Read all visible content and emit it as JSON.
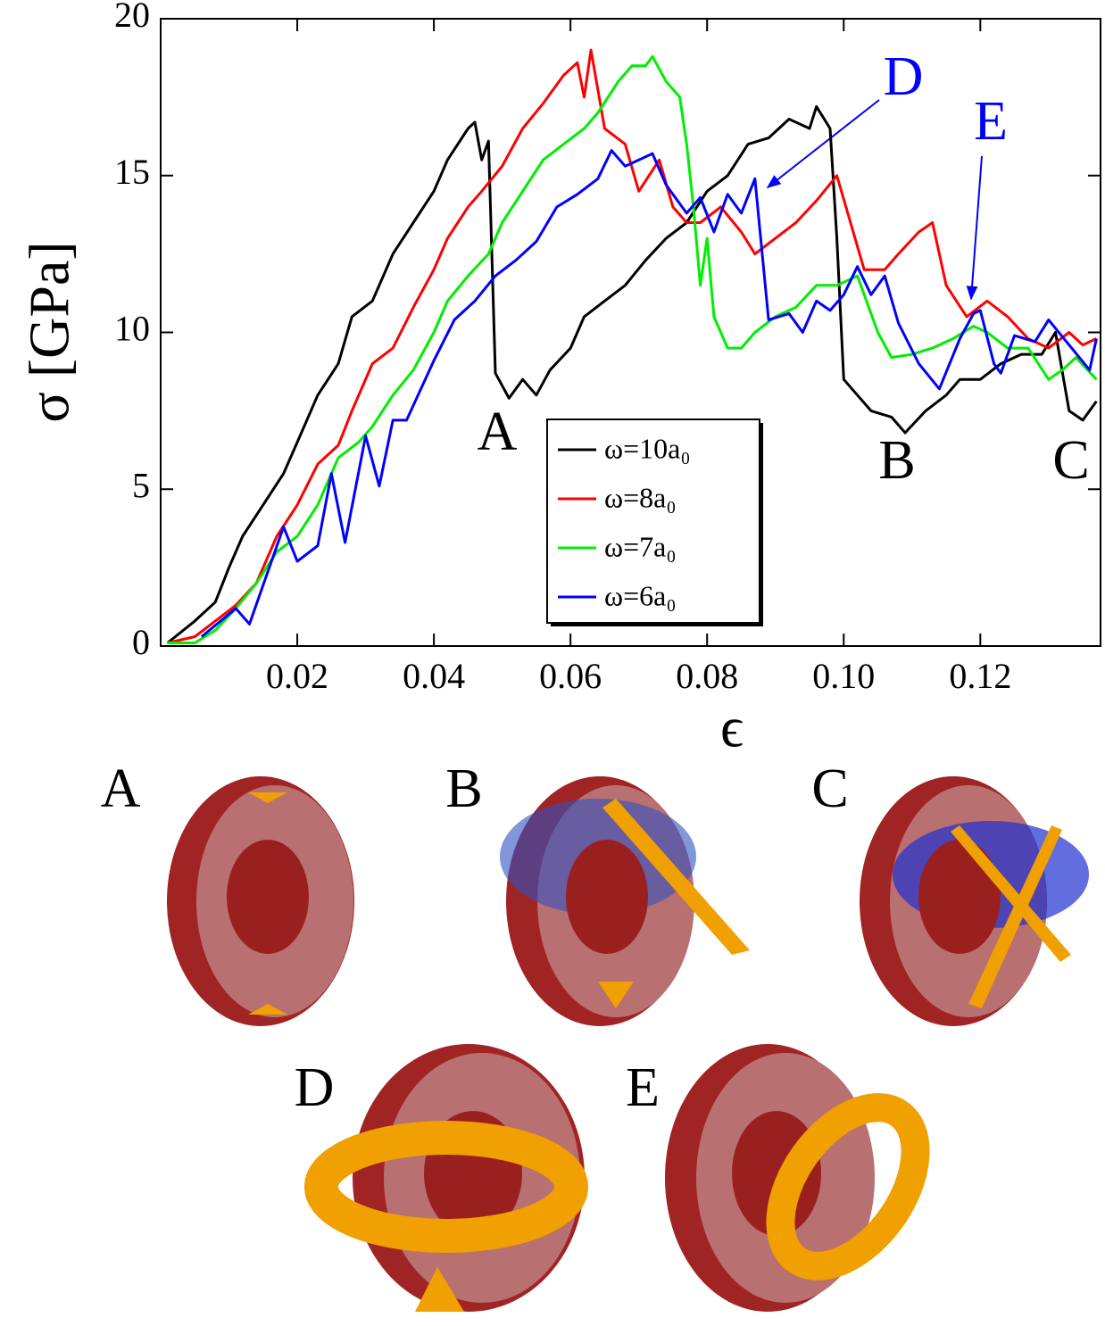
{
  "chart_data": {
    "type": "line",
    "x_label": "ϵ",
    "y_label": "σ [GPa]",
    "xlim": [
      0,
      0.1376
    ],
    "ylim": [
      0,
      20
    ],
    "xticks": [
      0.02,
      0.04,
      0.06,
      0.08,
      {
        "value": 0.1,
        "label": "0.10"
      },
      0.12
    ],
    "yticks": [
      0,
      5,
      10,
      15,
      20
    ],
    "legend": "center",
    "annotations": [
      "A",
      "B",
      "C",
      "D",
      "E"
    ],
    "series": [
      {
        "name": "ω=10a₀",
        "color": "#000000",
        "x": [
          0.001,
          0.005,
          0.008,
          0.01,
          0.012,
          0.015,
          0.018,
          0.02,
          0.023,
          0.026,
          0.028,
          0.031,
          0.034,
          0.037,
          0.04,
          0.042,
          0.045,
          0.046,
          0.047,
          0.048,
          0.049,
          0.051,
          0.053,
          0.055,
          0.057,
          0.06,
          0.062,
          0.065,
          0.068,
          0.071,
          0.074,
          0.077,
          0.08,
          0.083,
          0.086,
          0.089,
          0.092,
          0.095,
          0.096,
          0.098,
          0.099,
          0.1,
          0.102,
          0.104,
          0.107,
          0.109,
          0.112,
          0.115,
          0.117,
          0.12,
          0.123,
          0.126,
          0.129,
          0.131,
          0.133,
          0.135,
          0.137
        ],
        "values": [
          0.1,
          0.8,
          1.4,
          2.5,
          3.5,
          4.5,
          5.5,
          6.5,
          8,
          9,
          10.5,
          11,
          12.5,
          13.5,
          14.5,
          15.5,
          16.5,
          16.7,
          15.5,
          16.1,
          8.7,
          7.9,
          8.5,
          8,
          8.8,
          9.5,
          10.5,
          11,
          11.5,
          12.3,
          13,
          13.5,
          14.5,
          15,
          16,
          16.2,
          16.8,
          16.5,
          17.2,
          16.5,
          13,
          8.5,
          8,
          7.5,
          7.3,
          6.8,
          7.5,
          8,
          8.5,
          8.5,
          9,
          9.3,
          9.3,
          10,
          7.5,
          7.2,
          7.8
        ]
      },
      {
        "name": "ω=8a₀",
        "color": "#ff0000",
        "x": [
          0.001,
          0.005,
          0.008,
          0.011,
          0.014,
          0.017,
          0.02,
          0.023,
          0.026,
          0.028,
          0.031,
          0.034,
          0.037,
          0.04,
          0.042,
          0.045,
          0.047,
          0.05,
          0.053,
          0.056,
          0.059,
          0.061,
          0.062,
          0.063,
          0.065,
          0.068,
          0.07,
          0.073,
          0.075,
          0.077,
          0.079,
          0.082,
          0.085,
          0.087,
          0.09,
          0.093,
          0.096,
          0.099,
          0.101,
          0.103,
          0.106,
          0.108,
          0.111,
          0.113,
          0.115,
          0.118,
          0.121,
          0.124,
          0.127,
          0.13,
          0.133,
          0.135,
          0.137
        ],
        "values": [
          0.1,
          0.3,
          0.8,
          1.3,
          2,
          3.5,
          4.5,
          5.8,
          6.4,
          7.5,
          9,
          9.5,
          10.8,
          12,
          13,
          14,
          14.5,
          15.3,
          16.5,
          17.3,
          18.2,
          18.6,
          17.5,
          19,
          16.5,
          16,
          14.5,
          15.5,
          14,
          13.5,
          13.5,
          14,
          13.2,
          12.5,
          13,
          13.5,
          14.2,
          15,
          13.5,
          12,
          12,
          12.5,
          13.2,
          13.5,
          11.5,
          10.5,
          11,
          10.5,
          9.8,
          9.5,
          10,
          9.6,
          9.8
        ]
      },
      {
        "name": "ω=7a₀",
        "color": "#00ee00",
        "x": [
          0.001,
          0.005,
          0.008,
          0.011,
          0.014,
          0.017,
          0.02,
          0.023,
          0.026,
          0.029,
          0.031,
          0.034,
          0.037,
          0.04,
          0.042,
          0.045,
          0.048,
          0.05,
          0.053,
          0.056,
          0.059,
          0.062,
          0.064,
          0.067,
          0.069,
          0.071,
          0.072,
          0.074,
          0.076,
          0.077,
          0.078,
          0.079,
          0.08,
          0.081,
          0.083,
          0.085,
          0.087,
          0.09,
          0.093,
          0.096,
          0.099,
          0.102,
          0.105,
          0.107,
          0.11,
          0.113,
          0.116,
          0.119,
          0.121,
          0.124,
          0.127,
          0.13,
          0.132,
          0.134,
          0.137
        ],
        "values": [
          0.1,
          0.1,
          0.5,
          1.2,
          2,
          3,
          3.5,
          4.5,
          6,
          6.5,
          7,
          8,
          8.8,
          10,
          11,
          11.8,
          12.5,
          13.5,
          14.5,
          15.5,
          16,
          16.5,
          17,
          18,
          18.5,
          18.5,
          18.8,
          18,
          17.5,
          16,
          14,
          11.5,
          13,
          10.5,
          9.5,
          9.5,
          10,
          10.5,
          10.8,
          11.5,
          11.5,
          11.8,
          10,
          9.2,
          9.3,
          9.5,
          9.8,
          10.2,
          10,
          9.5,
          9.5,
          8.5,
          8.8,
          9.2,
          8.5
        ]
      },
      {
        "name": "ω=6a₀",
        "color": "#0000ff",
        "x": [
          0.006,
          0.011,
          0.013,
          0.018,
          0.02,
          0.023,
          0.025,
          0.027,
          0.03,
          0.032,
          0.034,
          0.036,
          0.04,
          0.043,
          0.046,
          0.049,
          0.052,
          0.055,
          0.058,
          0.061,
          0.064,
          0.066,
          0.068,
          0.07,
          0.072,
          0.074,
          0.077,
          0.079,
          0.081,
          0.083,
          0.085,
          0.087,
          0.089,
          0.092,
          0.094,
          0.096,
          0.098,
          0.1,
          0.102,
          0.104,
          0.106,
          0.108,
          0.111,
          0.114,
          0.117,
          0.119,
          0.12,
          0.122,
          0.123,
          0.125,
          0.128,
          0.13,
          0.133,
          0.136,
          0.137
        ],
        "values": [
          0.3,
          1.2,
          0.7,
          3.8,
          2.7,
          3.2,
          5.5,
          3.3,
          6.7,
          5.1,
          7.2,
          7.2,
          9.1,
          10.4,
          11,
          11.8,
          12.3,
          12.9,
          14,
          14.4,
          14.9,
          15.8,
          15.3,
          15.5,
          15.7,
          14.7,
          13.8,
          14.3,
          13.2,
          14.4,
          13.8,
          14.9,
          10.4,
          10.6,
          10,
          11,
          10.7,
          11.2,
          12.1,
          11.2,
          11.8,
          10.3,
          9,
          8.2,
          9.8,
          10.6,
          10.7,
          9,
          8.7,
          9.9,
          9.7,
          10.4,
          9.6,
          8.8,
          9.8
        ]
      }
    ]
  },
  "panels": [
    "A",
    "B",
    "C",
    "D",
    "E"
  ]
}
